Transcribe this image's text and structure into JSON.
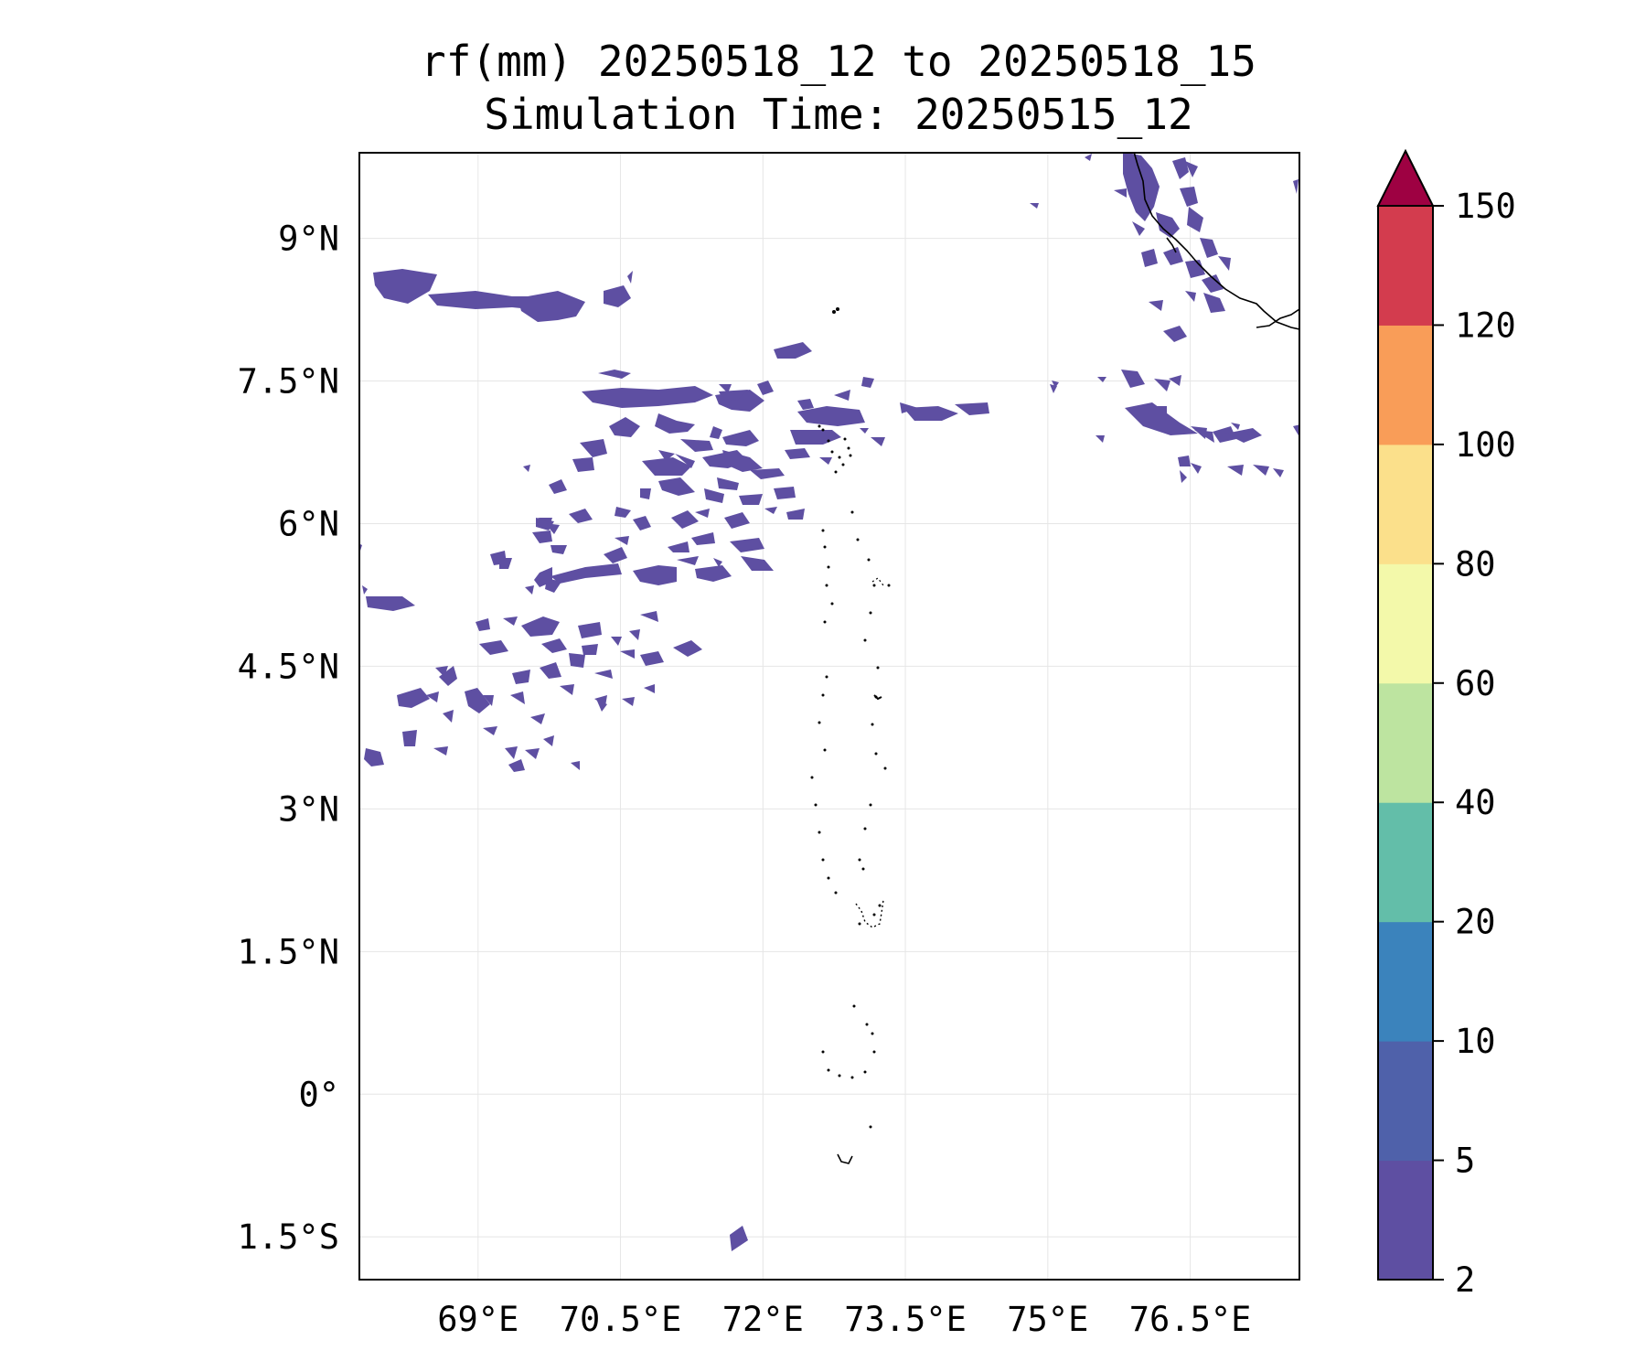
{
  "title": {
    "line1": "rf(mm) 20250518_12 to 20250518_15",
    "line2": "Simulation Time: 20250515_12"
  },
  "map": {
    "lon_range": [
      67.75,
      77.65
    ],
    "lat_range": [
      -1.95,
      9.9
    ],
    "x_ticks": [
      {
        "value": 69.0,
        "label": "69°E"
      },
      {
        "value": 70.5,
        "label": "70.5°E"
      },
      {
        "value": 72.0,
        "label": "72°E"
      },
      {
        "value": 73.5,
        "label": "73.5°E"
      },
      {
        "value": 75.0,
        "label": "75°E"
      },
      {
        "value": 76.5,
        "label": "76.5°E"
      }
    ],
    "y_ticks": [
      {
        "value": 9.0,
        "label": "9°N"
      },
      {
        "value": 7.5,
        "label": "7.5°N"
      },
      {
        "value": 6.0,
        "label": "6°N"
      },
      {
        "value": 4.5,
        "label": "4.5°N"
      },
      {
        "value": 3.0,
        "label": "3°N"
      },
      {
        "value": 1.5,
        "label": "1.5°N"
      },
      {
        "value": 0.0,
        "label": "0°"
      },
      {
        "value": -1.5,
        "label": "1.5°S"
      }
    ],
    "grid": true,
    "rain_color": "#5e4fa2",
    "coast_color": "#000000"
  },
  "colorbar": {
    "levels": [
      {
        "label": "2"
      },
      {
        "label": "5"
      },
      {
        "label": "10"
      },
      {
        "label": "20"
      },
      {
        "label": "40"
      },
      {
        "label": "60"
      },
      {
        "label": "80"
      },
      {
        "label": "100"
      },
      {
        "label": "120"
      },
      {
        "label": "150"
      }
    ],
    "colors": [
      "#5e4fa2",
      "#4f61aa",
      "#3b83bc",
      "#63bea9",
      "#bde4a0",
      "#f3f9aa",
      "#fbe08b",
      "#f99d58",
      "#d33c4e"
    ],
    "extend_color": "#9e0142"
  }
}
